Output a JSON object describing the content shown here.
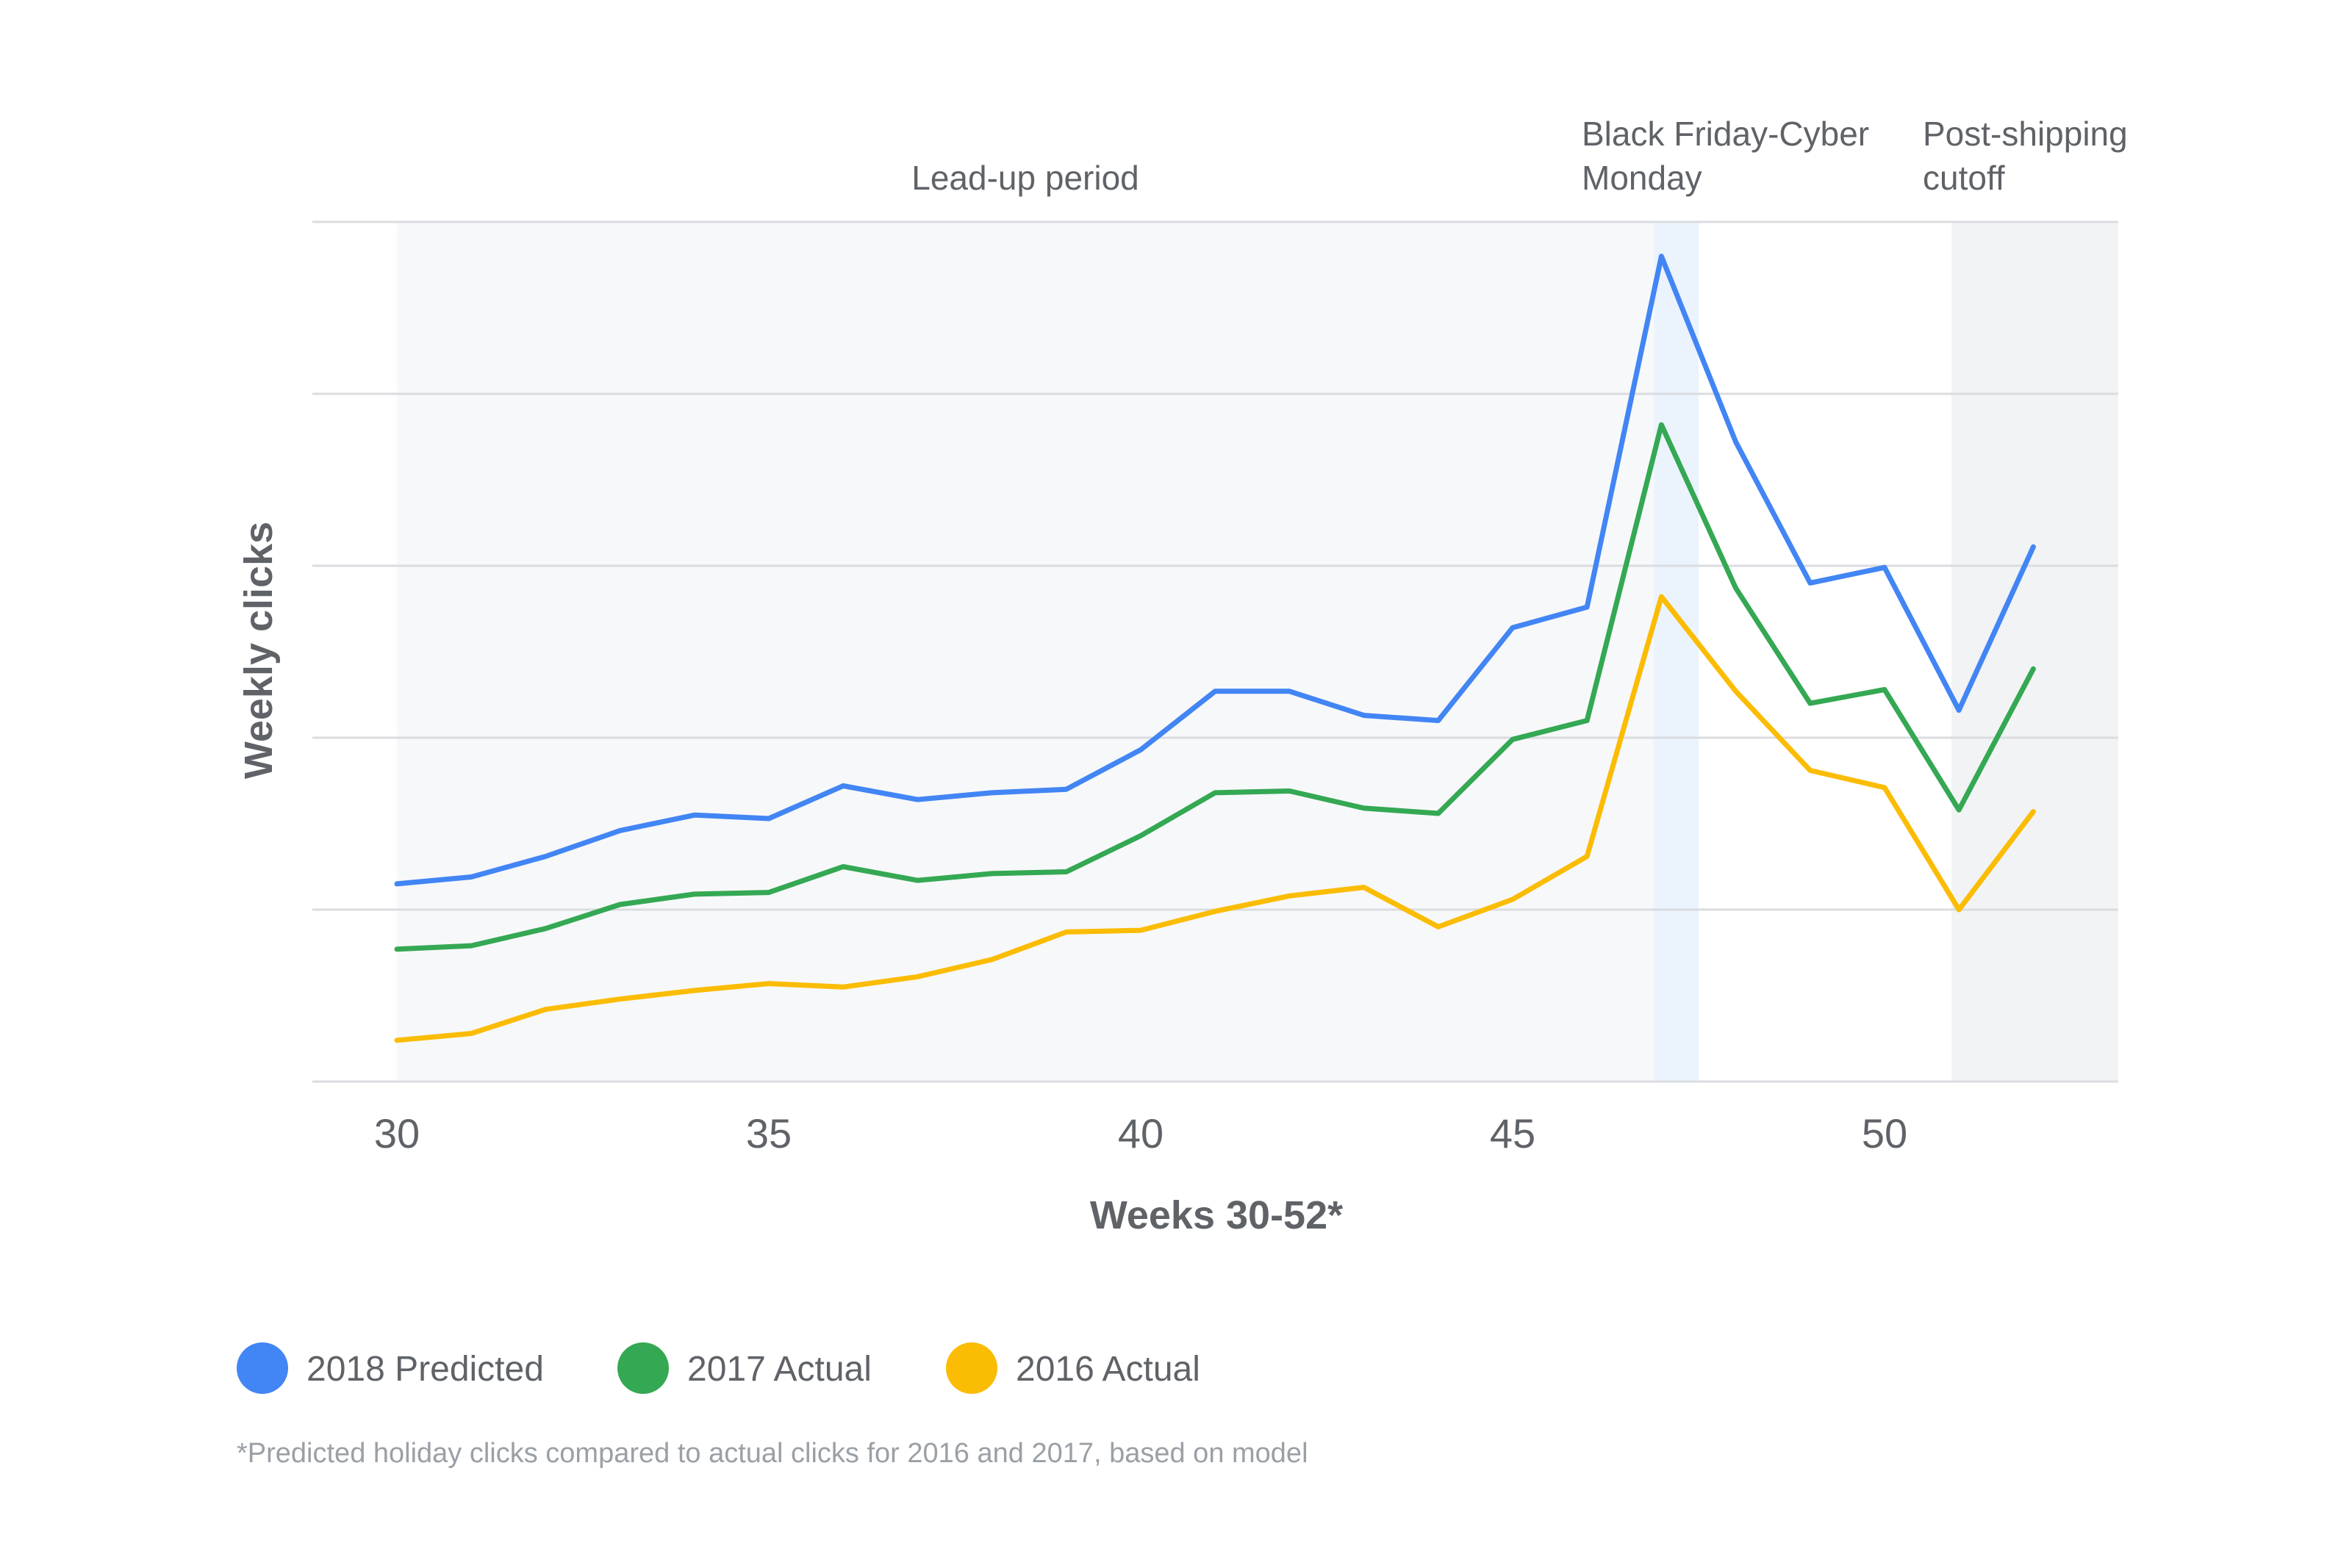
{
  "chart_data": {
    "type": "line",
    "xlabel": "Weeks 30-52*",
    "ylabel": "Weekly clicks",
    "x": [
      30,
      31,
      32,
      33,
      34,
      35,
      36,
      37,
      38,
      39,
      40,
      41,
      42,
      43,
      44,
      45,
      46,
      47,
      48,
      49,
      50,
      51,
      52
    ],
    "xlim": [
      29,
      53.3
    ],
    "x_ticks": [
      "30",
      "35",
      "40",
      "45",
      "50"
    ],
    "ylim": [
      0,
      5
    ],
    "y_gridlines": [
      0,
      1,
      2,
      3,
      4,
      5
    ],
    "y_tick_labels_shown": false,
    "grid": true,
    "legend": "bottom-left",
    "series": [
      {
        "name": "2018 Predicted",
        "color": "#4285f4",
        "values": [
          1.15,
          1.19,
          1.31,
          1.46,
          1.55,
          1.53,
          1.72,
          1.64,
          1.68,
          1.7,
          1.93,
          2.27,
          2.27,
          2.13,
          2.1,
          2.64,
          2.76,
          4.8,
          3.72,
          2.9,
          2.99,
          2.16,
          3.11
        ]
      },
      {
        "name": "2017 Actual",
        "color": "#34a853",
        "values": [
          0.77,
          0.79,
          0.89,
          1.03,
          1.09,
          1.1,
          1.25,
          1.17,
          1.21,
          1.22,
          1.43,
          1.68,
          1.69,
          1.59,
          1.56,
          1.99,
          2.1,
          3.82,
          2.87,
          2.2,
          2.28,
          1.58,
          2.4
        ]
      },
      {
        "name": "2016 Actual",
        "color": "#fbbc04",
        "values": [
          0.24,
          0.28,
          0.42,
          0.48,
          0.53,
          0.57,
          0.55,
          0.61,
          0.71,
          0.87,
          0.88,
          0.99,
          1.08,
          1.13,
          0.9,
          1.06,
          1.31,
          2.82,
          2.27,
          1.81,
          1.71,
          1.0,
          1.57
        ]
      }
    ],
    "annotations": [
      {
        "text": "Lead-up period",
        "x_start": 30,
        "x_end": 47
      },
      {
        "text_lines": [
          "Black Friday-Cyber",
          "Monday"
        ],
        "x_start": 46.9,
        "x_end": 47.5
      },
      {
        "text_lines": [
          "Post-shipping",
          "cutoff"
        ],
        "x_start": 50.9,
        "x_end": 53.3
      }
    ],
    "shaded_regions": [
      {
        "x_start": 30,
        "x_end": 46.9,
        "color": "#f7f8fa"
      },
      {
        "x_start": 46.9,
        "x_end": 47.5,
        "color": "#ebf3fd"
      },
      {
        "x_start": 50.9,
        "x_end": 53.3,
        "color": "#f1f3f4"
      }
    ],
    "footnote": "*Predicted holiday clicks compared to actual clicks for 2016 and 2017, based on model"
  }
}
